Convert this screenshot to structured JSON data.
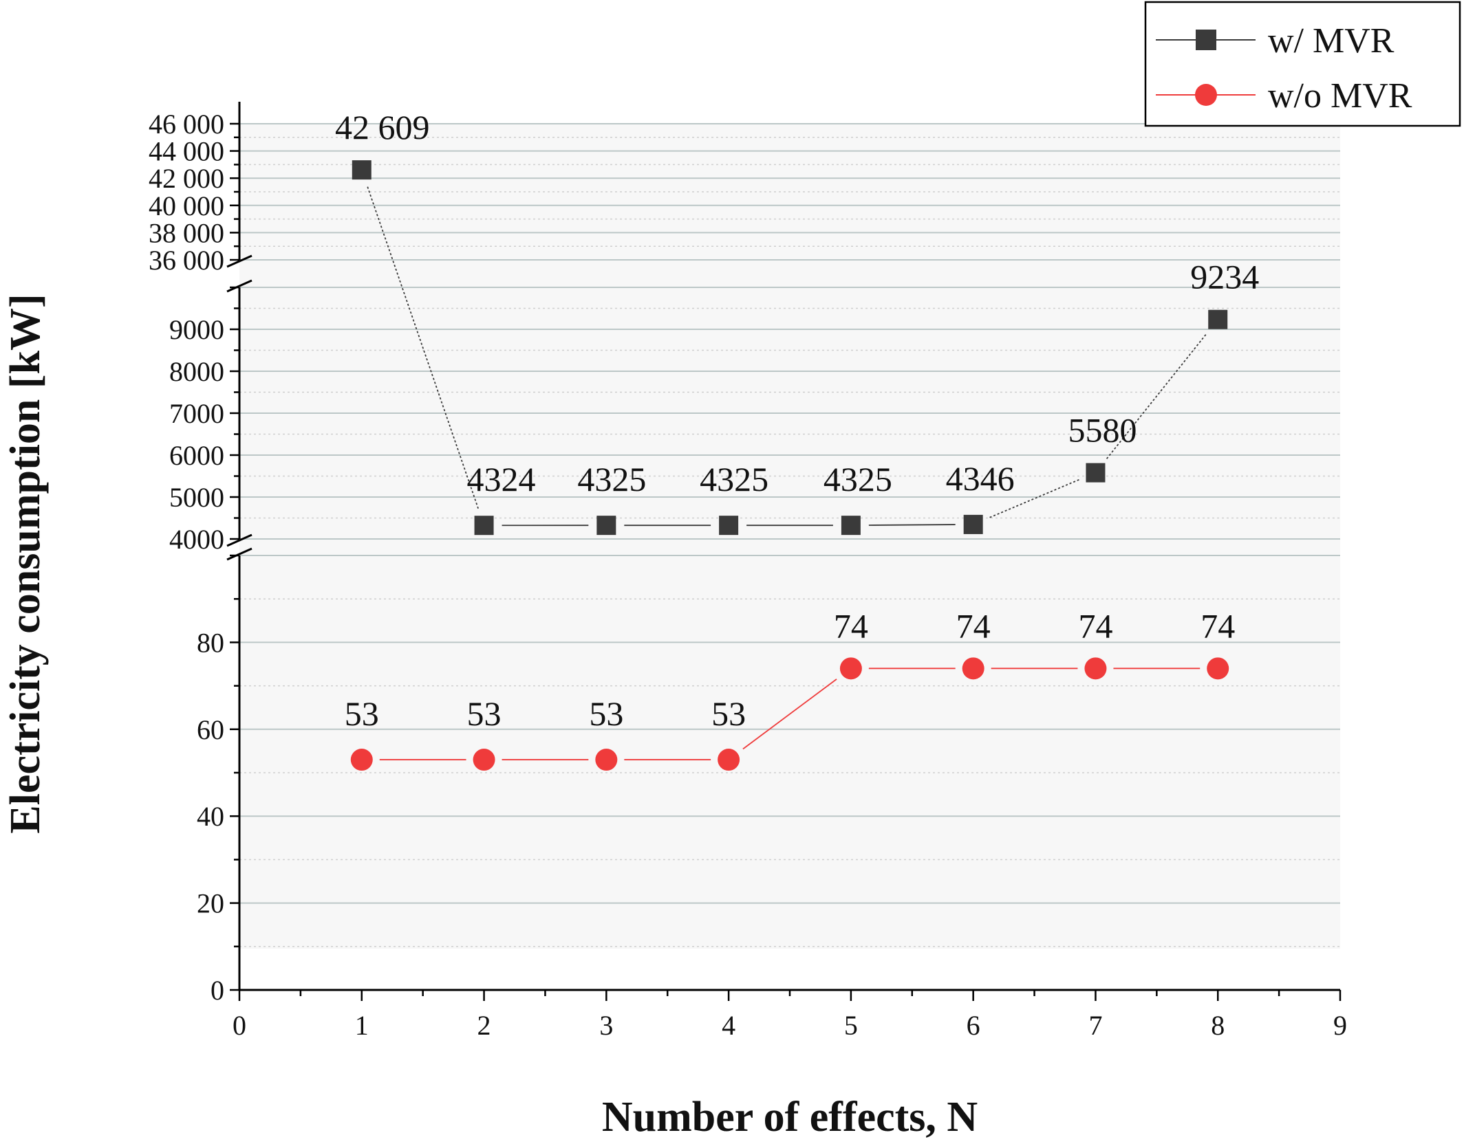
{
  "chart_data": {
    "type": "line",
    "xlabel": "Number of effects, N",
    "ylabel": "Electricity consumption [kW]",
    "x": [
      1,
      2,
      3,
      4,
      5,
      6,
      7,
      8
    ],
    "xlim": [
      0,
      9
    ],
    "x_ticks": [
      "0",
      "1",
      "2",
      "3",
      "4",
      "5",
      "6",
      "7",
      "8",
      "9"
    ],
    "y_axis_breaks": true,
    "y_segments": [
      {
        "range": [
          0,
          100
        ],
        "ticks": [
          "0",
          "20",
          "40",
          "60",
          "80"
        ]
      },
      {
        "range": [
          4000,
          10000
        ],
        "ticks": [
          "4000",
          "5000",
          "6000",
          "7000",
          "8000",
          "9000"
        ]
      },
      {
        "range": [
          36000,
          46000
        ],
        "ticks": [
          "36 000",
          "38 000",
          "40 000",
          "42 000",
          "44 000",
          "46 000"
        ]
      }
    ],
    "series": [
      {
        "name": "w/ MVR",
        "color": "#3a3a3a",
        "marker": "square",
        "values": [
          42609,
          4324,
          4325,
          4325,
          4325,
          4346,
          5580,
          9234
        ],
        "labels": [
          "42 609",
          "4324",
          "4325",
          "4325",
          "4325",
          "4346",
          "5580",
          "9234"
        ]
      },
      {
        "name": "w/o MVR",
        "color": "#ef3b3b",
        "marker": "circle",
        "values": [
          53,
          53,
          53,
          53,
          74,
          74,
          74,
          74
        ],
        "labels": [
          "53",
          "53",
          "53",
          "53",
          "74",
          "74",
          "74",
          "74"
        ]
      }
    ],
    "legend_position": "top-right",
    "grid": true
  }
}
